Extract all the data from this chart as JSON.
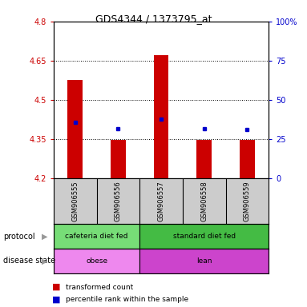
{
  "title": "GDS4344 / 1373795_at",
  "samples": [
    "GSM906555",
    "GSM906556",
    "GSM906557",
    "GSM906558",
    "GSM906559"
  ],
  "bar_values": [
    4.575,
    4.345,
    4.67,
    4.345,
    4.345
  ],
  "bar_base": 4.2,
  "percentile_values": [
    4.415,
    4.39,
    4.425,
    4.39,
    4.385
  ],
  "ylim_left": [
    4.2,
    4.8
  ],
  "ylim_right": [
    0,
    100
  ],
  "yticks_left": [
    4.2,
    4.35,
    4.5,
    4.65,
    4.8
  ],
  "yticks_right": [
    0,
    25,
    50,
    75,
    100
  ],
  "ytick_labels_left": [
    "4.2",
    "4.35",
    "4.5",
    "4.65",
    "4.8"
  ],
  "ytick_labels_right": [
    "0",
    "25",
    "50",
    "75",
    "100%"
  ],
  "dotted_lines": [
    4.35,
    4.5,
    4.65
  ],
  "bar_color": "#cc0000",
  "percentile_color": "#0000cc",
  "bar_width": 0.35,
  "protocol_groups": [
    {
      "label": "cafeteria diet fed",
      "start": 0,
      "end": 1,
      "color": "#77dd77"
    },
    {
      "label": "standard diet fed",
      "start": 2,
      "end": 4,
      "color": "#44bb44"
    }
  ],
  "disease_groups": [
    {
      "label": "obese",
      "start": 0,
      "end": 1,
      "color": "#ee88ee"
    },
    {
      "label": "lean",
      "start": 2,
      "end": 4,
      "color": "#cc44cc"
    }
  ],
  "legend_items": [
    "transformed count",
    "percentile rank within the sample"
  ],
  "legend_colors": [
    "#cc0000",
    "#0000cc"
  ],
  "axis_color_left": "#cc0000",
  "axis_color_right": "#0000cc",
  "bg_color": "#ffffff",
  "sample_box_color": "#cccccc"
}
